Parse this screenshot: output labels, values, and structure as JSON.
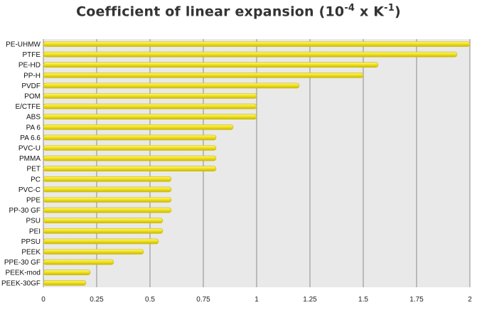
{
  "chart_data": {
    "type": "bar",
    "orientation": "horizontal",
    "title_text": "Coefficient of linear expansion (10",
    "title_exp1": "-4",
    "title_mid": " x K",
    "title_exp2": "-1",
    "title_end": ")",
    "categories": [
      "PE-UHMW",
      "PTFE",
      "PE-HD",
      "PP-H",
      "PVDF",
      "POM",
      "E/CTFE",
      "ABS",
      "PA 6",
      "PA 6.6",
      "PVC-U",
      "PMMA",
      "PET",
      "PC",
      "PVC-C",
      "PPE",
      "PP-30 GF",
      "PSU",
      "PEI",
      "PPSU",
      "PEEK",
      "PPE-30 GF",
      "PEEK-mod",
      "PEEK-30GF"
    ],
    "values": [
      2.0,
      1.94,
      1.57,
      1.5,
      1.2,
      1.0,
      1.0,
      1.0,
      0.89,
      0.81,
      0.81,
      0.81,
      0.81,
      0.6,
      0.6,
      0.6,
      0.6,
      0.56,
      0.56,
      0.54,
      0.47,
      0.33,
      0.22,
      0.2
    ],
    "xlim": [
      0,
      2
    ],
    "xticks": [
      0,
      0.25,
      0.5,
      0.75,
      1,
      1.25,
      1.5,
      1.75,
      2
    ],
    "xtick_labels": [
      "0",
      "0.25",
      "0.5",
      "0.75",
      "1",
      "1.25",
      "1.5",
      "1.75",
      "2"
    ],
    "grid": "vertical",
    "colors": {
      "bar": "#f2e21c",
      "bar_highlight": "#fbf58a",
      "bar_edge": "#c9b80c",
      "plot_bg": "#e9e9e9",
      "grid": "#8a8a8a"
    }
  }
}
